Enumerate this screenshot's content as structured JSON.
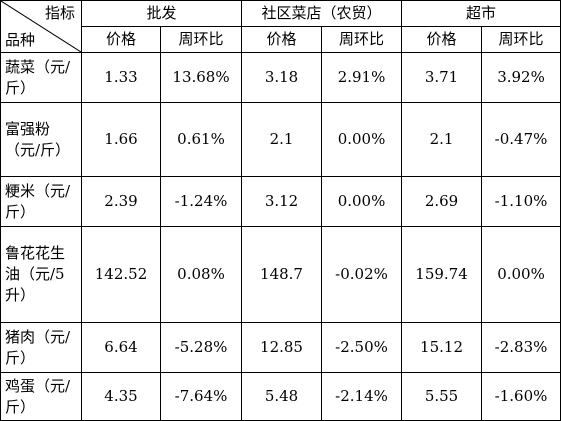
{
  "header": {
    "corner_top": "指标",
    "corner_bottom": "品种",
    "groups": [
      "批发",
      "社区菜店（农贸）",
      "超市"
    ],
    "sub_price": "价格",
    "sub_change": "周环比"
  },
  "rows": [
    {
      "name": "蔬菜（元/斤）",
      "values": [
        "1.33",
        "13.68%",
        "3.18",
        "2.91%",
        "3.71",
        "3.92%"
      ]
    },
    {
      "name": "富强粉（元/斤）",
      "values": [
        "1.66",
        "0.61%",
        "2.1",
        "0.00%",
        "2.1",
        "-0.47%"
      ]
    },
    {
      "name": "粳米（元/斤）",
      "values": [
        "2.39",
        "-1.24%",
        "3.12",
        "0.00%",
        "2.69",
        "-1.10%"
      ]
    },
    {
      "name": "鲁花花生油（元/5升）",
      "values": [
        "142.52",
        "0.08%",
        "148.7",
        "-0.02%",
        "159.74",
        "0.00%"
      ]
    },
    {
      "name": "猪肉（元/斤）",
      "values": [
        "6.64",
        "-5.28%",
        "12.85",
        "-2.50%",
        "15.12",
        "-2.83%"
      ]
    },
    {
      "name": "鸡蛋（元/斤）",
      "values": [
        "4.35",
        "-7.64%",
        "5.48",
        "-2.14%",
        "5.55",
        "-1.60%"
      ]
    }
  ]
}
